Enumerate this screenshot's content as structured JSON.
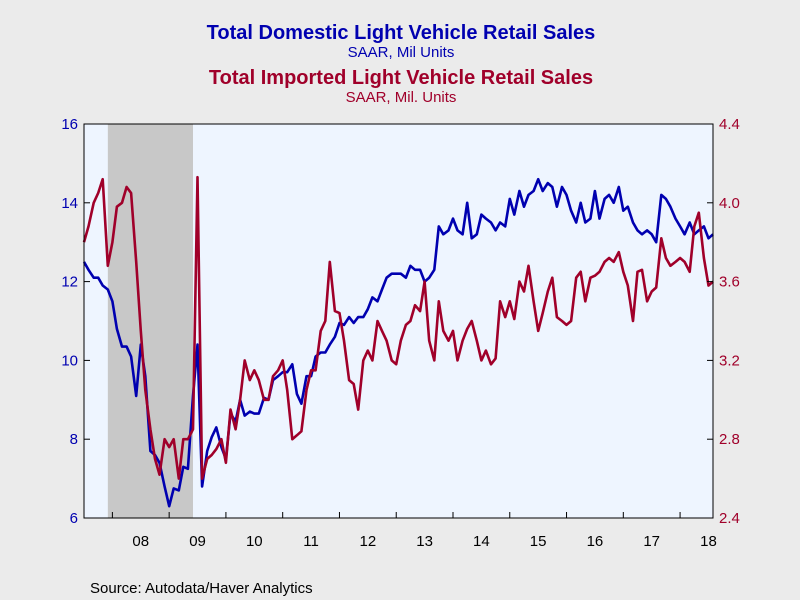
{
  "chart_data": {
    "type": "line",
    "titles": [
      {
        "text": "Total Domestic Light Vehicle Retail Sales",
        "color": "#0000b0"
      },
      {
        "text": "SAAR, Mil Units",
        "color": "#0000b0"
      },
      {
        "text": "Total Imported Light Vehicle Retail Sales",
        "color": "#a0002a"
      },
      {
        "text": "SAAR, Mil. Units",
        "color": "#a0002a"
      }
    ],
    "x_ticks": [
      "08",
      "09",
      "10",
      "11",
      "12",
      "13",
      "14",
      "15",
      "16",
      "17",
      "18"
    ],
    "x_range": [
      2007.5,
      2018.58
    ],
    "left_axis": {
      "ylim": [
        6,
        16
      ],
      "ticks": [
        "6",
        "8",
        "10",
        "12",
        "14",
        "16"
      ],
      "color": "#0000b0"
    },
    "right_axis": {
      "ylim": [
        2.4,
        4.4
      ],
      "ticks": [
        "2.4",
        "2.8",
        "3.2",
        "3.6",
        "4.0",
        "4.4"
      ],
      "color": "#a0002a"
    },
    "recession": {
      "start": 2007.92,
      "end": 2009.42
    },
    "grid": false,
    "legend": "none",
    "series": [
      {
        "axis": "left",
        "color": "#0000b0",
        "x": [
          2007.5,
          2007.58,
          2007.67,
          2007.75,
          2007.83,
          2007.92,
          2008.0,
          2008.08,
          2008.17,
          2008.25,
          2008.33,
          2008.42,
          2008.5,
          2008.58,
          2008.67,
          2008.75,
          2008.83,
          2008.92,
          2009.0,
          2009.08,
          2009.17,
          2009.25,
          2009.33,
          2009.42,
          2009.5,
          2009.58,
          2009.67,
          2009.75,
          2009.83,
          2009.92,
          2010.0,
          2010.08,
          2010.17,
          2010.25,
          2010.33,
          2010.42,
          2010.5,
          2010.58,
          2010.67,
          2010.75,
          2010.83,
          2010.92,
          2011.0,
          2011.08,
          2011.17,
          2011.25,
          2011.33,
          2011.42,
          2011.5,
          2011.58,
          2011.67,
          2011.75,
          2011.83,
          2011.92,
          2012.0,
          2012.08,
          2012.17,
          2012.25,
          2012.33,
          2012.42,
          2012.5,
          2012.58,
          2012.67,
          2012.75,
          2012.83,
          2012.92,
          2013.0,
          2013.08,
          2013.17,
          2013.25,
          2013.33,
          2013.42,
          2013.5,
          2013.58,
          2013.67,
          2013.75,
          2013.83,
          2013.92,
          2014.0,
          2014.08,
          2014.17,
          2014.25,
          2014.33,
          2014.42,
          2014.5,
          2014.58,
          2014.67,
          2014.75,
          2014.83,
          2014.92,
          2015.0,
          2015.08,
          2015.17,
          2015.25,
          2015.33,
          2015.42,
          2015.5,
          2015.58,
          2015.67,
          2015.75,
          2015.83,
          2015.92,
          2016.0,
          2016.08,
          2016.17,
          2016.25,
          2016.33,
          2016.42,
          2016.5,
          2016.58,
          2016.67,
          2016.75,
          2016.83,
          2016.92,
          2017.0,
          2017.08,
          2017.17,
          2017.25,
          2017.33,
          2017.42,
          2017.5,
          2017.58,
          2017.67,
          2017.75,
          2017.83,
          2017.92,
          2018.0,
          2018.08,
          2018.17,
          2018.25,
          2018.33,
          2018.42,
          2018.5,
          2018.58
        ],
        "values": [
          12.5,
          12.3,
          12.1,
          12.1,
          11.9,
          11.8,
          11.5,
          10.8,
          10.35,
          10.35,
          10.1,
          9.1,
          10.4,
          9.6,
          7.7,
          7.6,
          7.4,
          6.8,
          6.3,
          6.75,
          6.7,
          7.3,
          7.25,
          9.1,
          10.4,
          6.8,
          7.7,
          8.05,
          8.3,
          7.8,
          7.5,
          8.65,
          8.45,
          9.0,
          8.6,
          8.7,
          8.65,
          8.65,
          9.05,
          9.0,
          9.5,
          9.6,
          9.7,
          9.7,
          9.9,
          9.15,
          8.9,
          9.6,
          9.6,
          10.1,
          10.2,
          10.2,
          10.4,
          10.6,
          10.95,
          10.9,
          11.1,
          10.95,
          11.1,
          11.1,
          11.3,
          11.6,
          11.5,
          11.8,
          12.1,
          12.2,
          12.2,
          12.2,
          12.1,
          12.4,
          12.3,
          12.3,
          12.0,
          12.1,
          12.3,
          13.4,
          13.2,
          13.3,
          13.6,
          13.3,
          13.2,
          14.0,
          13.1,
          13.2,
          13.7,
          13.6,
          13.5,
          13.3,
          13.5,
          13.4,
          14.1,
          13.7,
          14.3,
          13.9,
          14.2,
          14.3,
          14.6,
          14.3,
          14.5,
          14.4,
          13.9,
          14.4,
          14.2,
          13.8,
          13.5,
          14.0,
          13.5,
          13.6,
          14.3,
          13.6,
          14.1,
          14.2,
          14.0,
          14.4,
          13.8,
          13.9,
          13.5,
          13.3,
          13.2,
          13.3,
          13.2,
          13.0,
          14.2,
          14.1,
          13.9,
          13.6,
          13.4,
          13.2,
          13.5,
          13.2,
          13.3,
          13.4,
          13.1,
          13.2
        ]
      },
      {
        "axis": "right",
        "color": "#a0002a",
        "x": [
          2007.5,
          2007.58,
          2007.67,
          2007.75,
          2007.83,
          2007.92,
          2008.0,
          2008.08,
          2008.17,
          2008.25,
          2008.33,
          2008.42,
          2008.5,
          2008.58,
          2008.67,
          2008.75,
          2008.83,
          2008.92,
          2009.0,
          2009.08,
          2009.17,
          2009.25,
          2009.33,
          2009.42,
          2009.5,
          2009.58,
          2009.67,
          2009.75,
          2009.83,
          2009.92,
          2010.0,
          2010.08,
          2010.17,
          2010.25,
          2010.33,
          2010.42,
          2010.5,
          2010.58,
          2010.67,
          2010.75,
          2010.83,
          2010.92,
          2011.0,
          2011.08,
          2011.17,
          2011.25,
          2011.33,
          2011.42,
          2011.5,
          2011.58,
          2011.67,
          2011.75,
          2011.83,
          2011.92,
          2012.0,
          2012.08,
          2012.17,
          2012.25,
          2012.33,
          2012.42,
          2012.5,
          2012.58,
          2012.67,
          2012.75,
          2012.83,
          2012.92,
          2013.0,
          2013.08,
          2013.17,
          2013.25,
          2013.33,
          2013.42,
          2013.5,
          2013.58,
          2013.67,
          2013.75,
          2013.83,
          2013.92,
          2014.0,
          2014.08,
          2014.17,
          2014.25,
          2014.33,
          2014.42,
          2014.5,
          2014.58,
          2014.67,
          2014.75,
          2014.83,
          2014.92,
          2015.0,
          2015.08,
          2015.17,
          2015.25,
          2015.33,
          2015.42,
          2015.5,
          2015.58,
          2015.67,
          2015.75,
          2015.83,
          2015.92,
          2016.0,
          2016.08,
          2016.17,
          2016.25,
          2016.33,
          2016.42,
          2016.5,
          2016.58,
          2016.67,
          2016.75,
          2016.83,
          2016.92,
          2017.0,
          2017.08,
          2017.17,
          2017.25,
          2017.33,
          2017.42,
          2017.5,
          2017.58,
          2017.67,
          2017.75,
          2017.83,
          2017.92,
          2018.0,
          2018.08,
          2018.17,
          2018.25,
          2018.33,
          2018.42,
          2018.5,
          2018.58
        ],
        "values": [
          3.8,
          3.88,
          4.0,
          4.05,
          4.12,
          3.68,
          3.8,
          3.98,
          4.0,
          4.08,
          4.05,
          3.7,
          3.35,
          3.05,
          2.85,
          2.7,
          2.62,
          2.8,
          2.76,
          2.8,
          2.6,
          2.8,
          2.8,
          2.85,
          4.13,
          2.6,
          2.7,
          2.72,
          2.75,
          2.8,
          2.68,
          2.95,
          2.85,
          3.0,
          3.2,
          3.1,
          3.15,
          3.1,
          3.0,
          3.0,
          3.12,
          3.15,
          3.2,
          3.05,
          2.8,
          2.82,
          2.84,
          3.05,
          3.15,
          3.15,
          3.35,
          3.4,
          3.7,
          3.45,
          3.44,
          3.3,
          3.1,
          3.08,
          2.95,
          3.2,
          3.25,
          3.2,
          3.4,
          3.35,
          3.3,
          3.2,
          3.18,
          3.3,
          3.38,
          3.4,
          3.48,
          3.45,
          3.6,
          3.3,
          3.2,
          3.5,
          3.35,
          3.3,
          3.35,
          3.2,
          3.3,
          3.36,
          3.4,
          3.3,
          3.2,
          3.25,
          3.18,
          3.21,
          3.5,
          3.42,
          3.5,
          3.41,
          3.6,
          3.55,
          3.68,
          3.5,
          3.35,
          3.44,
          3.55,
          3.62,
          3.42,
          3.4,
          3.38,
          3.4,
          3.62,
          3.65,
          3.5,
          3.62,
          3.63,
          3.65,
          3.7,
          3.72,
          3.7,
          3.75,
          3.65,
          3.58,
          3.4,
          3.65,
          3.66,
          3.5,
          3.55,
          3.57,
          3.82,
          3.72,
          3.68,
          3.7,
          3.72,
          3.7,
          3.65,
          3.88,
          3.95,
          3.72,
          3.58,
          3.6
        ]
      }
    ]
  },
  "footer": {
    "source": "Source:  Autodata/Haver Analytics"
  }
}
